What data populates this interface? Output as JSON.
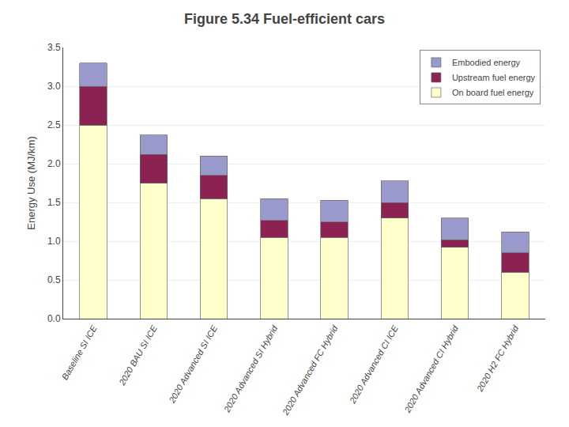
{
  "chart_data": {
    "type": "bar",
    "stacked": true,
    "title": "Figure 5.34 Fuel-efficient cars",
    "ylabel": "Energy Use (MJ/km)",
    "categories": [
      "Baseline SI ICE",
      "2020 BAU SI ICE",
      "2020 Advanced SI ICE",
      "2020 Advanced SI Hybrid",
      "2020 Advanced FC Hybrid",
      "2020 Advanced CI ICE",
      "2020 Advanced CI Hybrid",
      "2020 H2 FC Hybrid"
    ],
    "series": [
      {
        "name": "On board fuel energy",
        "color": "#FFFFCC",
        "values": [
          2.5,
          1.75,
          1.55,
          1.05,
          1.05,
          1.3,
          0.92,
          0.6
        ]
      },
      {
        "name": "Upstream fuel energy",
        "color": "#8B2252",
        "values": [
          0.5,
          0.37,
          0.3,
          0.22,
          0.2,
          0.2,
          0.1,
          0.25
        ]
      },
      {
        "name": "Embodied energy",
        "color": "#9999CC",
        "values": [
          0.3,
          0.25,
          0.25,
          0.28,
          0.28,
          0.28,
          0.28,
          0.27
        ]
      }
    ],
    "ylim": [
      0.0,
      3.5
    ],
    "yticks": [
      {
        "value": 0.0,
        "label": "0.0"
      },
      0.5,
      {
        "value": 1.0,
        "label": "1.0"
      },
      1.5,
      {
        "value": 2.0,
        "label": "2.0"
      },
      2.5,
      {
        "value": 3.0,
        "label": "3.0"
      },
      3.5
    ],
    "grid": true,
    "legend": "upper right"
  }
}
